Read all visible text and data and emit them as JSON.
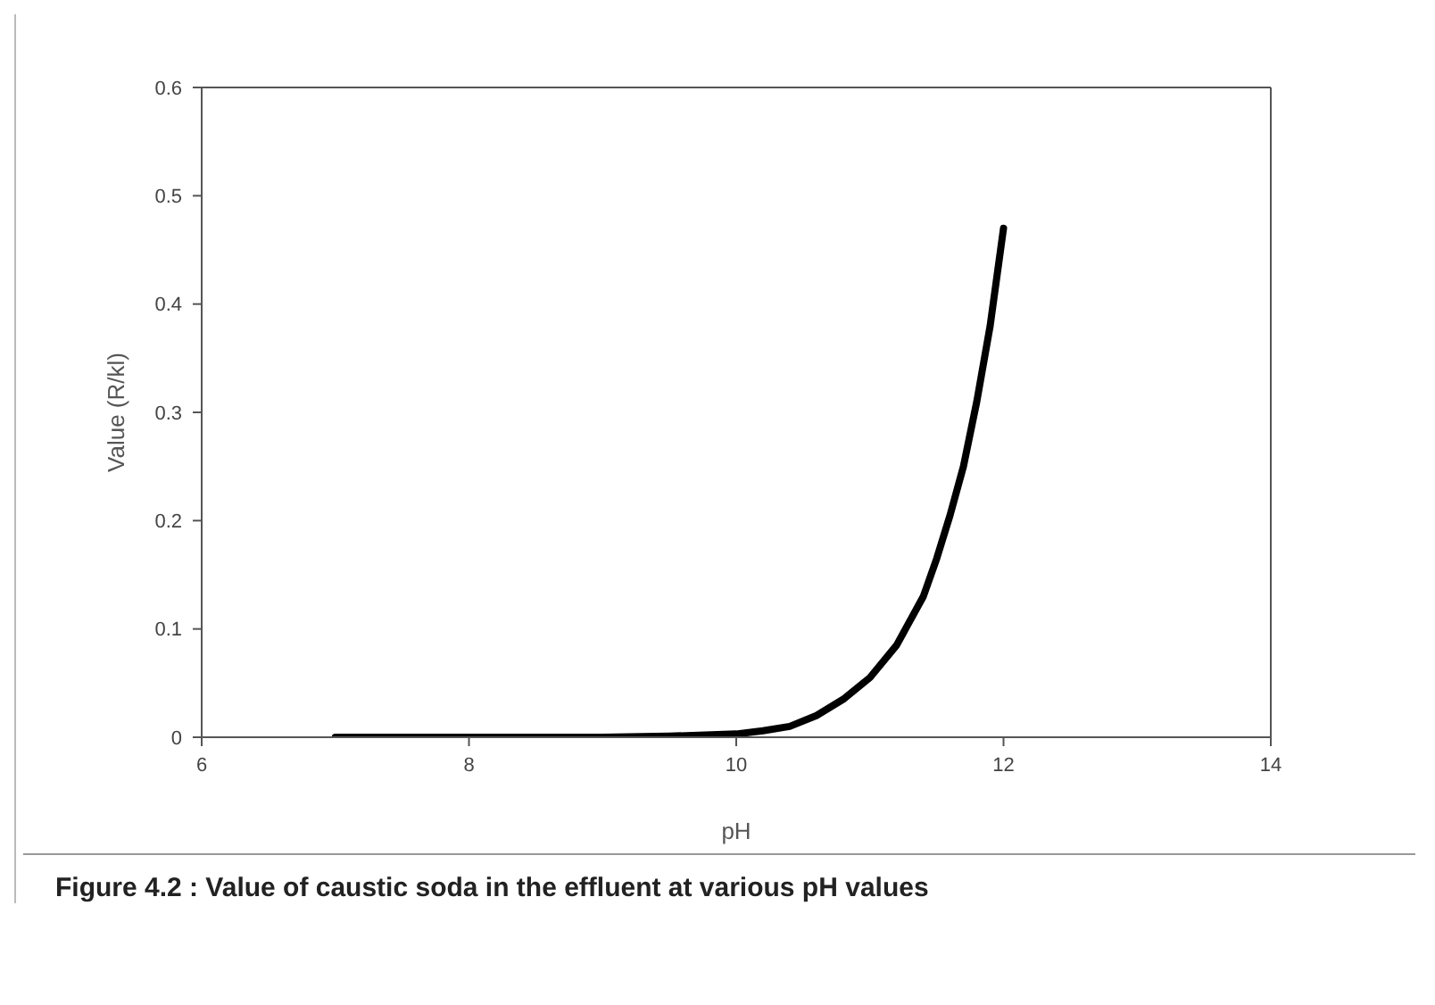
{
  "chart_data": {
    "type": "line",
    "title": "Figure 4.2 : Value of caustic soda in the effluent at various pH values",
    "xlabel": "pH",
    "ylabel": "Value (R/kl)",
    "series": [
      {
        "color": "#000000",
        "x": [
          7,
          7.5,
          8,
          8.5,
          9,
          9.5,
          10,
          10.2,
          10.4,
          10.6,
          10.8,
          11,
          11.2,
          11.4,
          11.5,
          11.6,
          11.7,
          11.8,
          11.9,
          12
        ],
        "values": [
          0,
          0,
          0,
          0,
          0,
          0.001,
          0.003,
          0.006,
          0.01,
          0.02,
          0.035,
          0.055,
          0.085,
          0.13,
          0.165,
          0.205,
          0.25,
          0.31,
          0.38,
          0.47
        ]
      }
    ],
    "xlim": [
      6,
      14
    ],
    "xticks": [
      6,
      8,
      10,
      12,
      14
    ],
    "ylim": [
      0,
      0.6
    ],
    "yticks": [
      0,
      0.1,
      0.2,
      0.3,
      0.4,
      0.5,
      0.6
    ],
    "marker": "none",
    "line_style": "solid"
  }
}
